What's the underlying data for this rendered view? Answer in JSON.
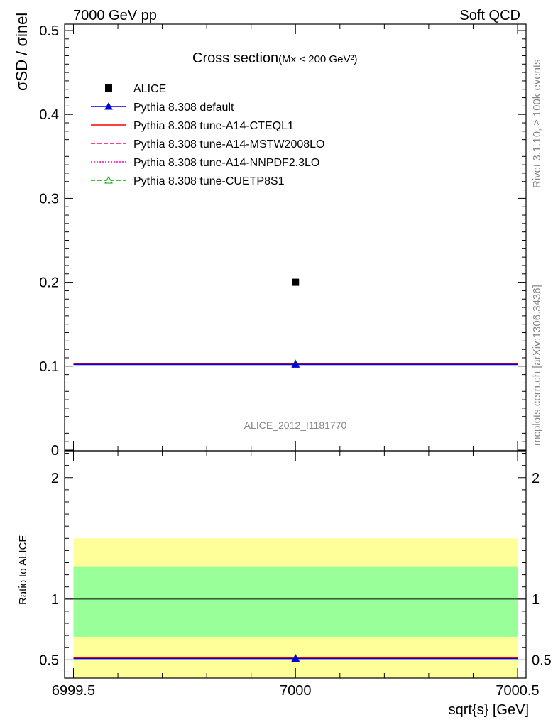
{
  "header": {
    "left": "7000 GeV pp",
    "right": "Soft QCD"
  },
  "side_labels": {
    "rivet": "Rivet 3.1.10, ≥ 100k events",
    "mcplots": "mcplots.cern.ch [arXiv:1306.3436]"
  },
  "chart_data": {
    "type": "scatter",
    "title": "Cross section",
    "subtitle": "(Mx < 200 GeV²)",
    "analysis_label": "ALICE_2012_I1181770",
    "xlabel": "sqrt{s} [GeV]",
    "ylabel_main": "σSD / σinel",
    "ylabel_ratio": "Ratio to ALICE",
    "xlim": [
      6999.5,
      7000.5
    ],
    "ylim_main": [
      0,
      0.5
    ],
    "ylim_ratio": [
      0.35,
      2.25
    ],
    "x_ticks": [
      "6999.5",
      "7000",
      "7000.5"
    ],
    "y_ticks_main": [
      "0",
      "0.1",
      "0.2",
      "0.3",
      "0.4",
      "0.5"
    ],
    "y_ticks_ratio": [
      "0.5",
      "1",
      "2"
    ],
    "grid": false,
    "legend_position": "top-left",
    "data": {
      "name": "ALICE",
      "x": 7000,
      "y": 0.2,
      "color": "#000000"
    },
    "series": [
      {
        "name": "Pythia 8.308 default",
        "x": [
          6999.5,
          7000,
          7000.5
        ],
        "y": [
          0.102,
          0.102,
          0.102
        ],
        "ratio": 0.51,
        "color": "#0000dd",
        "style": "solid",
        "marker": "triangle-filled"
      },
      {
        "name": "Pythia 8.308 tune-A14-CTEQL1",
        "x": [
          6999.5,
          7000,
          7000.5
        ],
        "y": [
          0.103,
          0.103,
          0.103
        ],
        "ratio": 0.515,
        "color": "#ff0000",
        "style": "solid",
        "marker": "none"
      },
      {
        "name": "Pythia 8.308 tune-A14-MSTW2008LO",
        "x": [
          6999.5,
          7000,
          7000.5
        ],
        "y": [
          0.103,
          0.103,
          0.103
        ],
        "ratio": 0.515,
        "color": "#ff0066",
        "style": "dashed",
        "marker": "none"
      },
      {
        "name": "Pythia 8.308 tune-A14-NNPDF2.3LO",
        "x": [
          6999.5,
          7000,
          7000.5
        ],
        "y": [
          0.103,
          0.103,
          0.103
        ],
        "ratio": 0.515,
        "color": "#ff00cc",
        "style": "dotted",
        "marker": "none"
      },
      {
        "name": "Pythia 8.308 tune-CUETP8S1",
        "x": [
          6999.5,
          7000,
          7000.5
        ],
        "y": [
          0.103,
          0.103,
          0.103
        ],
        "ratio": 0.515,
        "color": "#00aa00",
        "style": "dashed",
        "marker": "triangle-open"
      }
    ],
    "ratio_bands": {
      "stat": [
        0.69,
        1.27
      ],
      "total": [
        0.35,
        1.5
      ],
      "stat_color": "#99ff99",
      "total_color": "#ffff99"
    }
  }
}
